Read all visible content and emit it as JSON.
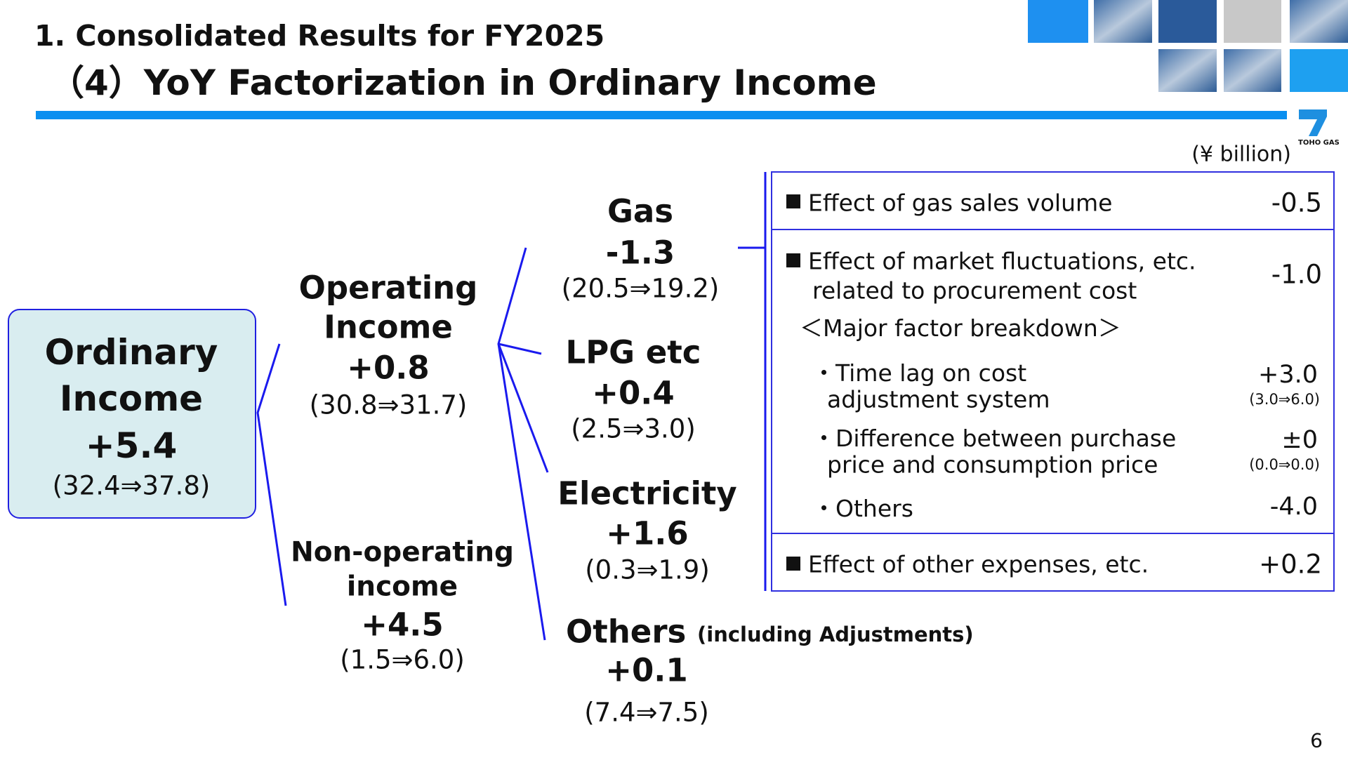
{
  "header": {
    "section": "1.  Consolidated Results for FY2025",
    "title": "（4）YoY Factorization in Ordinary Income",
    "unit": "(¥ billion)",
    "logo": "TOHO GAS",
    "page": "6"
  },
  "nodes": {
    "ordinary": {
      "label1": "Ordinary",
      "label2": "Income",
      "change": "+5.4",
      "detail": "(32.4⇒37.8)"
    },
    "operating": {
      "label1": "Operating",
      "label2": "Income",
      "change": "+0.8",
      "detail": "(30.8⇒31.7)"
    },
    "nonoperating": {
      "label1": "Non-operating",
      "label2": "income",
      "change": "+4.5",
      "detail": "(1.5⇒6.0)"
    },
    "gas": {
      "label": "Gas",
      "change": "-1.3",
      "detail": "(20.5⇒19.2)"
    },
    "lpg": {
      "label": "LPG etc",
      "change": "+0.4",
      "detail": "(2.5⇒3.0)"
    },
    "electricity": {
      "label": "Electricity",
      "change": "+1.6",
      "detail": "(0.3⇒1.9)"
    },
    "others": {
      "label": "Others",
      "note": "(including Adjustments)",
      "change": "+0.1",
      "detail": "(7.4⇒7.5)"
    }
  },
  "table": {
    "volume": {
      "label": "Effect of gas sales volume",
      "value": "-0.5"
    },
    "market": {
      "label1": "Effect of market fluctuations, etc.",
      "label2": "related to procurement cost",
      "value": "-1.0"
    },
    "breakdown": "＜Major factor breakdown＞",
    "timelag": {
      "label1": "・Time lag on cost",
      "label2": "adjustment system",
      "value": "+3.0",
      "detail": "(3.0⇒6.0)"
    },
    "difference": {
      "label1": "・Difference between purchase",
      "label2": "price and consumption price",
      "value": "±0",
      "detail": "(0.0⇒0.0)"
    },
    "others": {
      "label": "・Others",
      "value": "-4.0"
    },
    "expenses": {
      "label": "Effect of other expenses, etc.",
      "value": "+0.2"
    }
  }
}
